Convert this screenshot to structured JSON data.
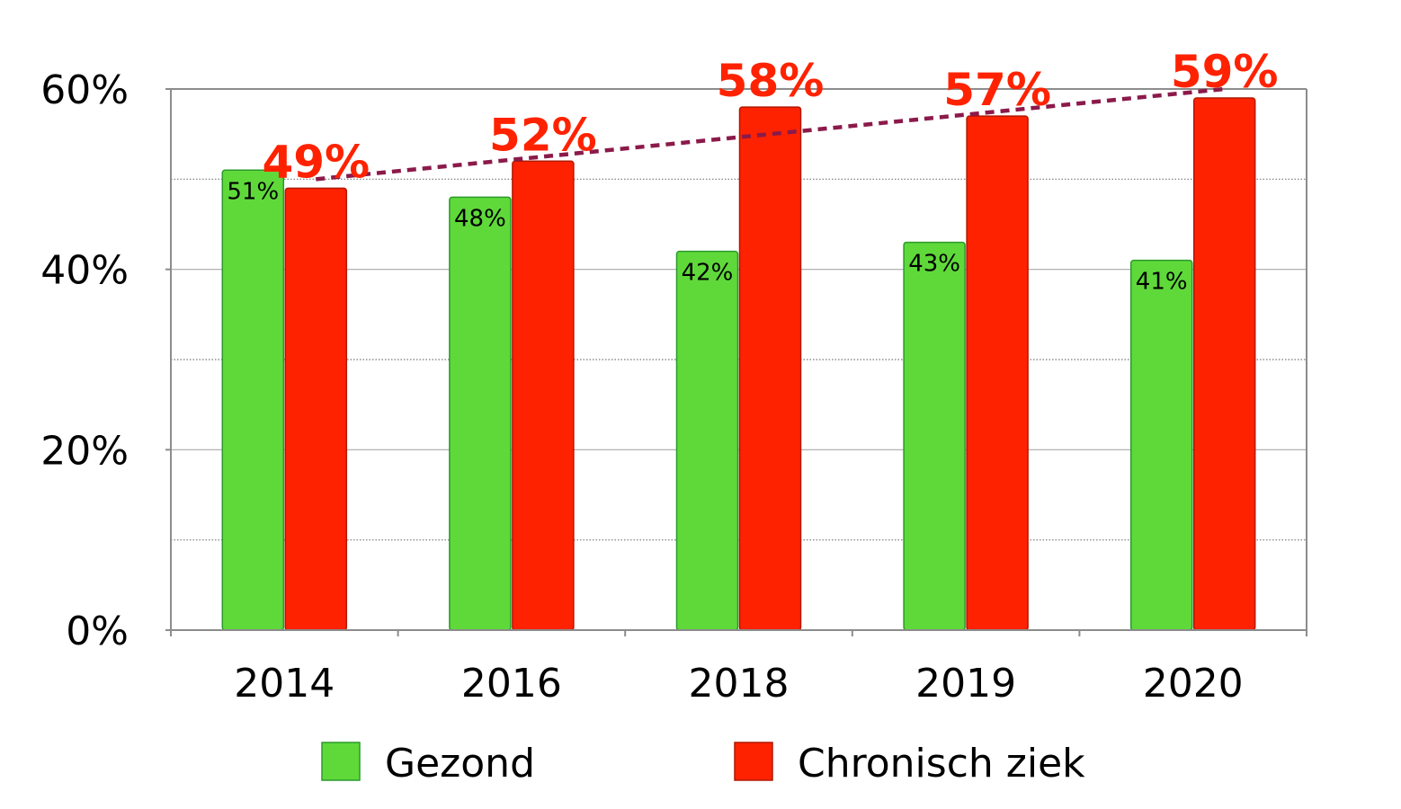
{
  "chart_data": {
    "type": "bar",
    "title": "",
    "xlabel": "",
    "ylabel": "",
    "ylim": [
      0,
      60
    ],
    "yticks": [
      "0%",
      "20%",
      "40%",
      "60%"
    ],
    "categories": [
      "2014",
      "2016",
      "2018",
      "2019",
      "2020"
    ],
    "series": [
      {
        "name": "Gezond",
        "values": [
          51,
          48,
          42,
          43,
          41
        ],
        "labels": [
          "51%",
          "48%",
          "42%",
          "43%",
          "41%"
        ]
      },
      {
        "name": "Chronisch ziek",
        "values": [
          49,
          52,
          58,
          57,
          59
        ],
        "labels": [
          "49%",
          "52%",
          "58%",
          "57%",
          "59%"
        ]
      }
    ],
    "trendline": {
      "series": "Chronisch ziek",
      "start": 50,
      "end": 60
    },
    "legend_position": "bottom",
    "grid": true
  },
  "colors": {
    "gezond": "#5fd93a",
    "gezond_edge": "#2a9a2a",
    "chronisch": "#ff2200",
    "chronisch_edge": "#b01800",
    "trend": "#8b1a4a",
    "grid_major": "#a8a8a8",
    "grid_minor": "#777777",
    "axis": "#8c8c8c"
  }
}
